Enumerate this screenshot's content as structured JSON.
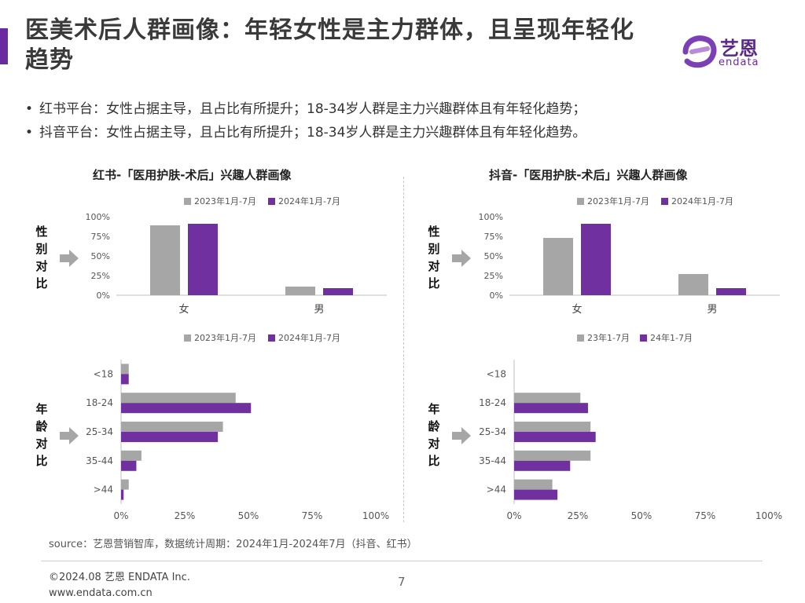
{
  "title": "医美术后人群画像：年轻女性是主力群体，且呈现年轻化趋势",
  "logo": {
    "name": "艺恩",
    "sub": "endata"
  },
  "bullets": [
    "红书平台：女性占据主导，且占比有所提升；18-34岁人群是主力兴趣群体且有年轻化趋势；",
    "抖音平台：女性占据主导，且占比有所提升；18-34岁人群是主力兴趣群体且有年轻化趋势。"
  ],
  "panels": {
    "left_title": "红书-「医用护肤-术后」兴趣人群画像",
    "right_title": "抖音-「医用护肤-术后」兴趣人群画像"
  },
  "side_labels": {
    "gender": [
      "性",
      "别",
      "对",
      "比"
    ],
    "age": [
      "年",
      "龄",
      "对",
      "比"
    ]
  },
  "colors": {
    "series_2023": "#a6a6a6",
    "series_2024": "#7030a0",
    "arrow": "#a6a6a6"
  },
  "chart_data": [
    {
      "type": "bar",
      "categories": [
        "女",
        "男"
      ],
      "series": [
        {
          "name": "2023年1月-7月",
          "values": [
            0.89,
            0.11
          ]
        },
        {
          "name": "2024年1月-7月",
          "values": [
            0.91,
            0.09
          ]
        }
      ],
      "ylim": [
        0,
        1
      ],
      "yticks": [
        "100%",
        "75%",
        "50%",
        "25%",
        "0%"
      ]
    },
    {
      "type": "bar",
      "categories": [
        "女",
        "男"
      ],
      "series": [
        {
          "name": "2023年1月-7月",
          "values": [
            0.73,
            0.27
          ]
        },
        {
          "name": "2024年1月-7月",
          "values": [
            0.91,
            0.09
          ]
        }
      ],
      "ylim": [
        0,
        1
      ],
      "yticks": [
        "100%",
        "75%",
        "50%",
        "25%",
        "0%"
      ]
    },
    {
      "type": "bar",
      "orientation": "horizontal",
      "categories": [
        "<18",
        "18-24",
        "25-34",
        "35-44",
        ">44"
      ],
      "series": [
        {
          "name": "2023年1月-7月",
          "values": [
            0.03,
            0.45,
            0.4,
            0.08,
            0.03
          ]
        },
        {
          "name": "2024年1月-7月",
          "values": [
            0.03,
            0.51,
            0.38,
            0.06,
            0.01
          ]
        }
      ],
      "xlim": [
        0,
        1
      ],
      "xticks": [
        "0%",
        "25%",
        "50%",
        "75%",
        "100%"
      ]
    },
    {
      "type": "bar",
      "orientation": "horizontal",
      "categories": [
        "<18",
        "18-24",
        "25-34",
        "35-44",
        ">44"
      ],
      "series": [
        {
          "name": "23年1-7月",
          "values": [
            0.0,
            0.26,
            0.3,
            0.3,
            0.15
          ]
        },
        {
          "name": "24年1-7月",
          "values": [
            0.0,
            0.29,
            0.32,
            0.22,
            0.17
          ]
        }
      ],
      "xlim": [
        0,
        1
      ],
      "xticks": [
        "0%",
        "25%",
        "50%",
        "75%",
        "100%"
      ]
    }
  ],
  "source": "source：艺恩营销智库，数据统计周期：2024年1月-2024年7月（抖音、红书）",
  "footer": {
    "copyright": "©2024.08 艺恩 ENDATA Inc.",
    "website": "www.endata.com.cn",
    "page": "7"
  }
}
